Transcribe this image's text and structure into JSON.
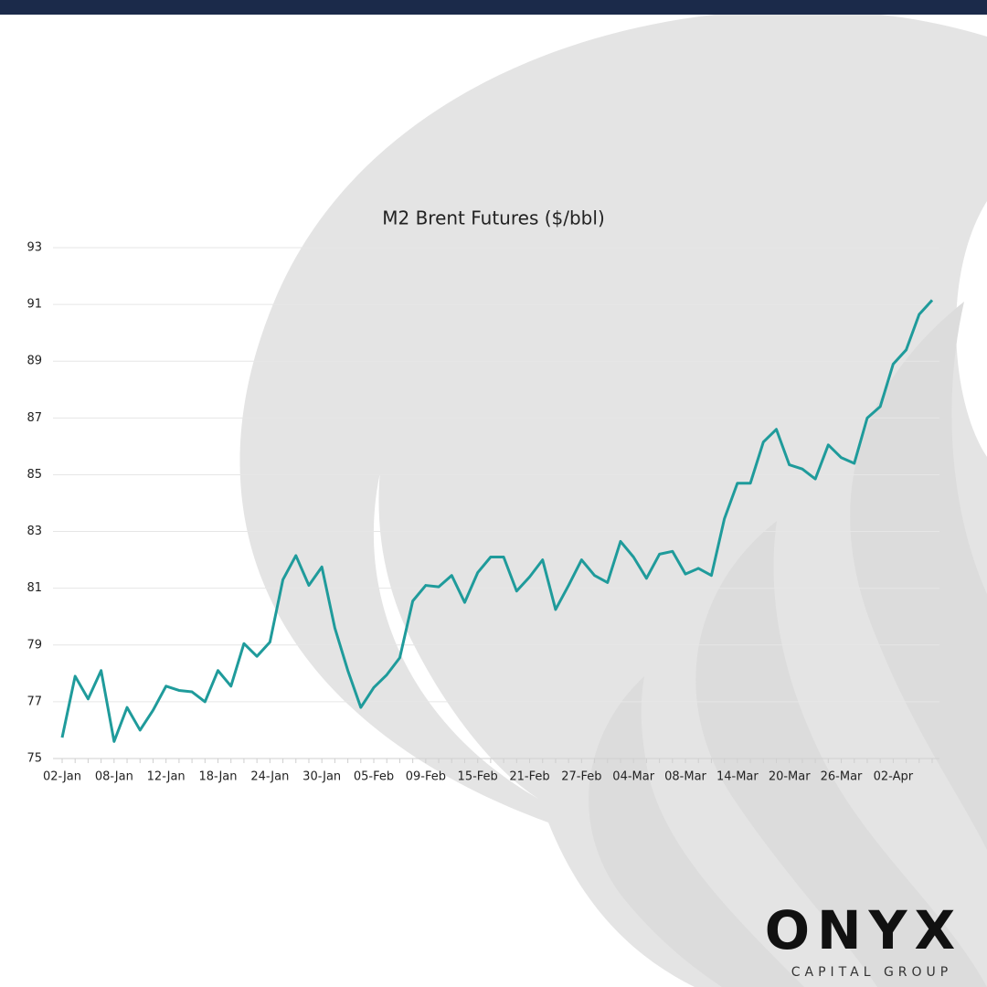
{
  "chart_data": {
    "type": "line",
    "title": "M2 Brent Futures ($/bbl)",
    "categories": [
      "02-Jan",
      null,
      null,
      null,
      "08-Jan",
      null,
      null,
      null,
      "12-Jan",
      null,
      null,
      null,
      "18-Jan",
      null,
      null,
      null,
      "24-Jan",
      null,
      null,
      null,
      "30-Jan",
      null,
      null,
      null,
      "05-Feb",
      null,
      null,
      null,
      "09-Feb",
      null,
      null,
      null,
      "15-Feb",
      null,
      null,
      null,
      "21-Feb",
      null,
      null,
      null,
      "27-Feb",
      null,
      null,
      null,
      "04-Mar",
      null,
      null,
      null,
      "08-Mar",
      null,
      null,
      null,
      "14-Mar",
      null,
      null,
      null,
      "20-Mar",
      null,
      null,
      null,
      "26-Mar",
      null,
      null,
      null,
      "02-Apr",
      null,
      null,
      null
    ],
    "values": [
      75.74,
      77.9,
      77.1,
      78.1,
      75.6,
      76.8,
      76.0,
      76.7,
      77.55,
      77.4,
      77.35,
      77.0,
      78.1,
      77.55,
      79.05,
      78.6,
      79.1,
      81.3,
      82.15,
      81.1,
      81.75,
      79.6,
      78.1,
      76.8,
      77.5,
      77.95,
      78.55,
      80.55,
      81.1,
      81.05,
      81.45,
      80.5,
      81.55,
      82.1,
      82.1,
      80.9,
      81.4,
      82.0,
      80.25,
      81.1,
      82.0,
      81.45,
      81.2,
      82.65,
      82.1,
      81.35,
      82.2,
      82.3,
      81.5,
      81.7,
      81.45,
      83.45,
      84.7,
      84.7,
      86.15,
      86.6,
      85.35,
      85.2,
      84.85,
      86.05,
      85.6,
      85.4,
      87.0,
      87.4,
      88.9,
      89.4,
      90.65,
      91.15
    ],
    "color": "#1f9b9b",
    "ylim": [
      75,
      93
    ],
    "yticks": [
      75,
      77,
      79,
      81,
      83,
      85,
      87,
      89,
      91,
      93
    ],
    "grid": true
  },
  "logo": {
    "name": "ONYX",
    "tagline": "CAPITAL GROUP"
  }
}
